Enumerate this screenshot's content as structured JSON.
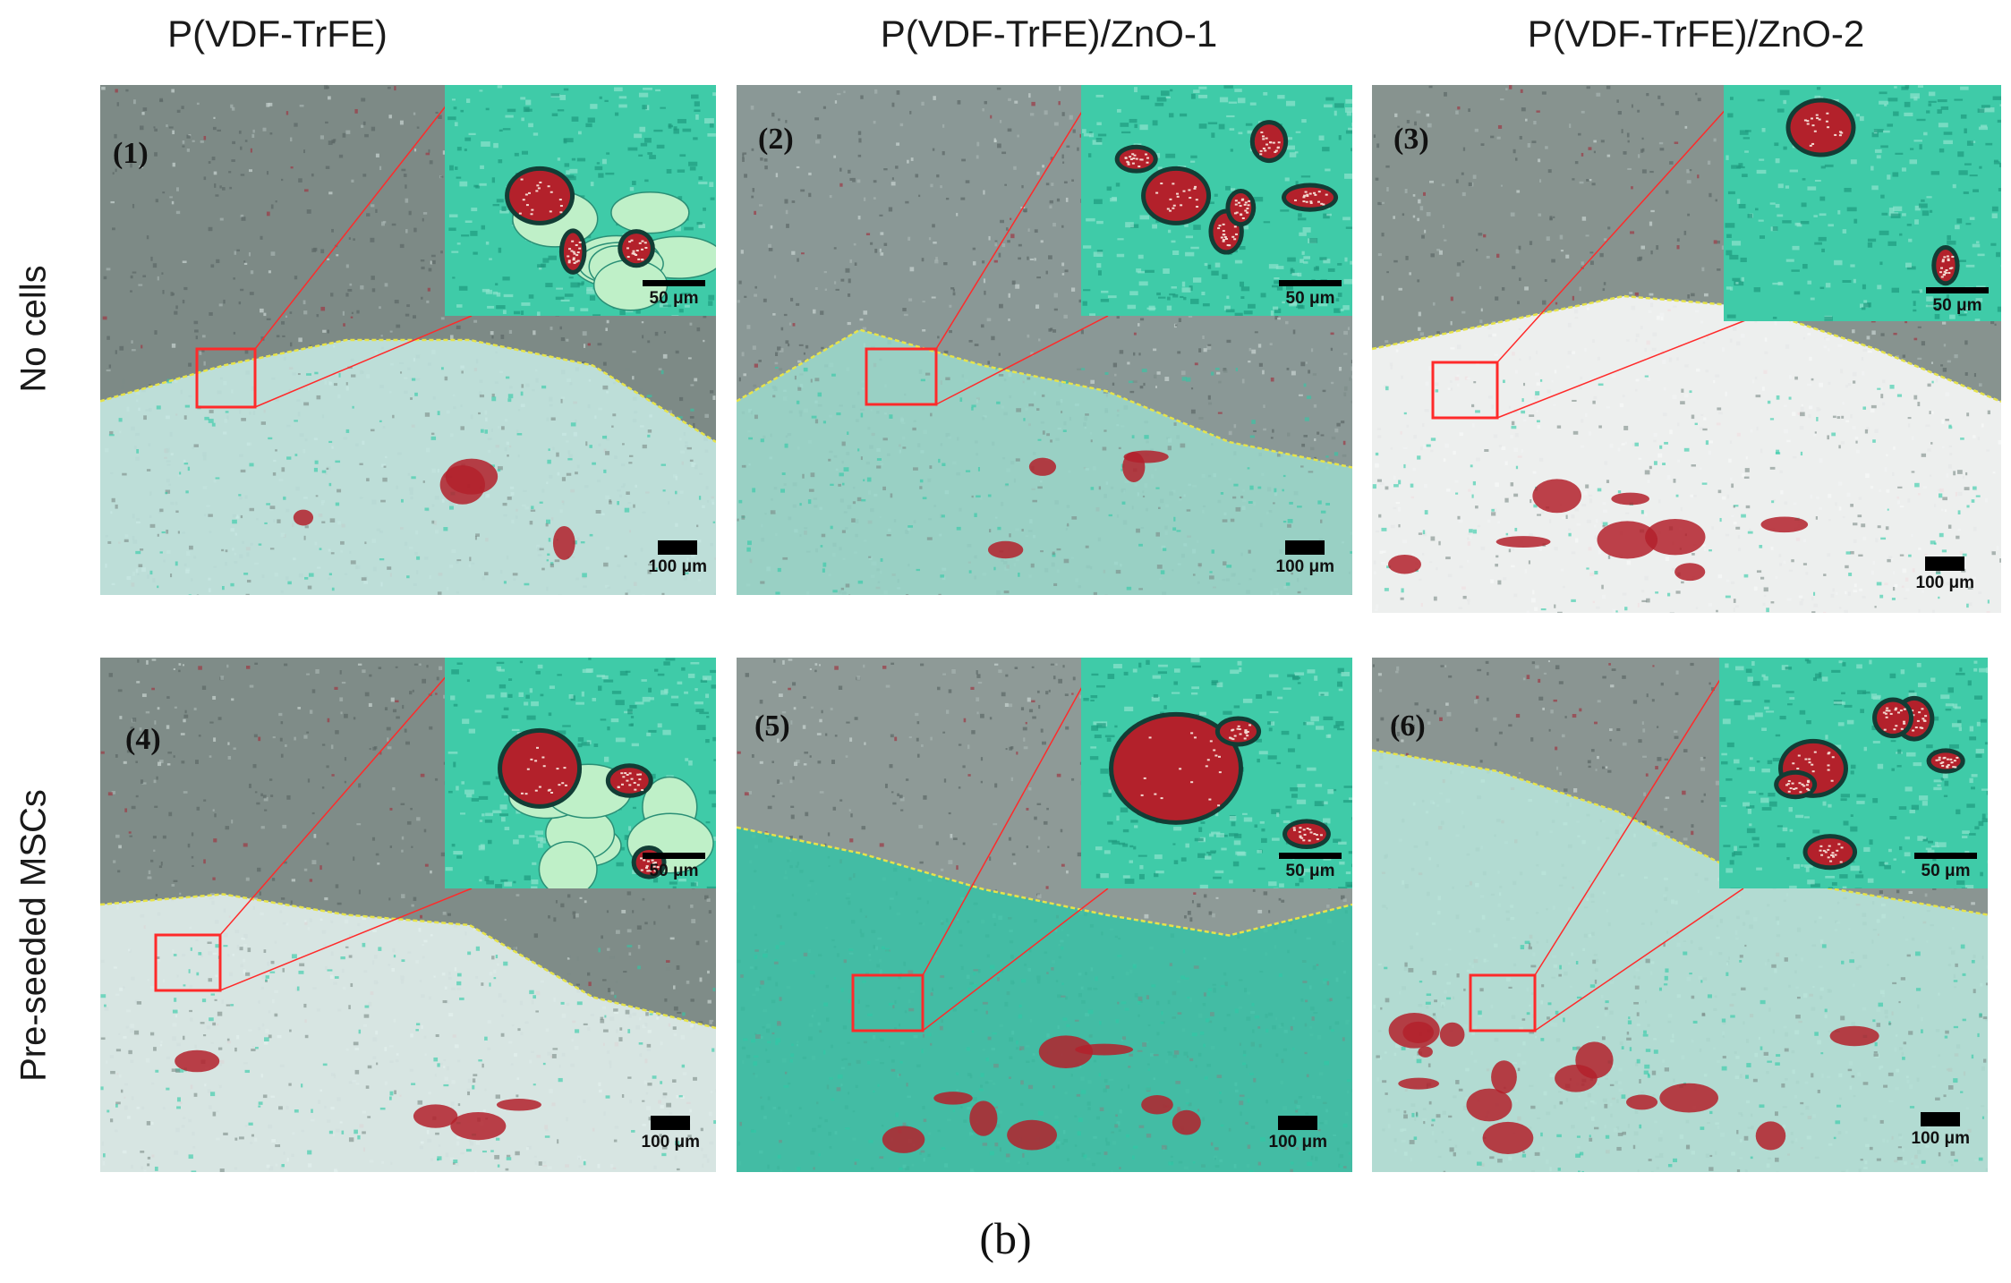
{
  "columns": [
    "P(VDF-TrFE)",
    "P(VDF-TrFE)/ZnO-1",
    "P(VDF-TrFE)/ZnO-2"
  ],
  "rows": [
    "No cells",
    "Pre-seeded MSCs"
  ],
  "panels": [
    {
      "label": "(1)",
      "scale_main": "100 μm",
      "scale_inset": "50 μm"
    },
    {
      "label": "(2)",
      "scale_main": "100 μm",
      "scale_inset": "50 μm"
    },
    {
      "label": "(3)",
      "scale_main": "100 μm",
      "scale_inset": "50 μm"
    },
    {
      "label": "(4)",
      "scale_main": "100 μm",
      "scale_inset": "50 μm"
    },
    {
      "label": "(5)",
      "scale_main": "100 μm",
      "scale_inset": "50 μm"
    },
    {
      "label": "(6)",
      "scale_main": "100 μm",
      "scale_inset": "50 μm"
    }
  ],
  "figure_label": "(b)",
  "colors": {
    "tissue": "#6f7a78",
    "collagen": "#2fc9a6",
    "blood": "#b3212b",
    "highlight_box": "#ff2a2a",
    "boundary_line": "#e6e34a"
  }
}
